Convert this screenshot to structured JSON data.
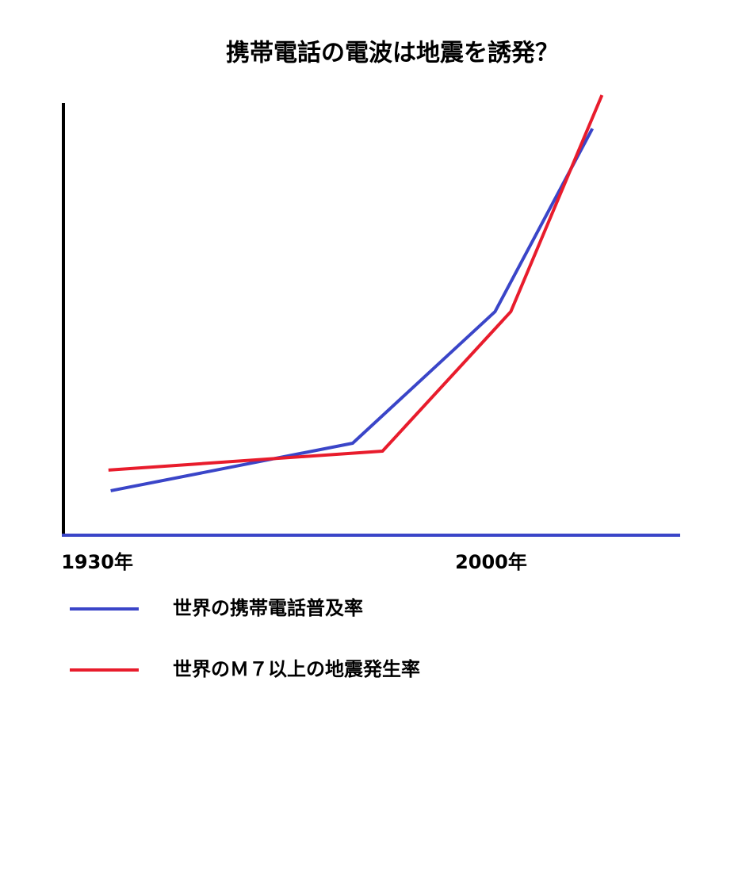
{
  "chart_data": {
    "type": "line",
    "title": "携帯電話の電波は地震を誘発？",
    "xlim": [
      1924,
      2033.6
    ],
    "xticks": [
      {
        "value": 1930,
        "label": "1930年"
      },
      {
        "value": 2000,
        "label": "2000年"
      }
    ],
    "ylim": [
      0,
      100
    ],
    "series": [
      {
        "name": "世界の携帯電話普及率",
        "color": "#3a45c8",
        "x": [
          1932.4,
          1975.4,
          2000.7,
          2018.0
        ],
        "values": [
          10.1,
          20.9,
          50.8,
          92.4
        ]
      },
      {
        "name": "世界のＭ７以上の地震発生率",
        "color": "#e81c2c",
        "x": [
          1932.0,
          1980.7,
          2003.5,
          2019.7
        ],
        "values": [
          14.8,
          19.1,
          50.8,
          100
        ]
      }
    ]
  }
}
